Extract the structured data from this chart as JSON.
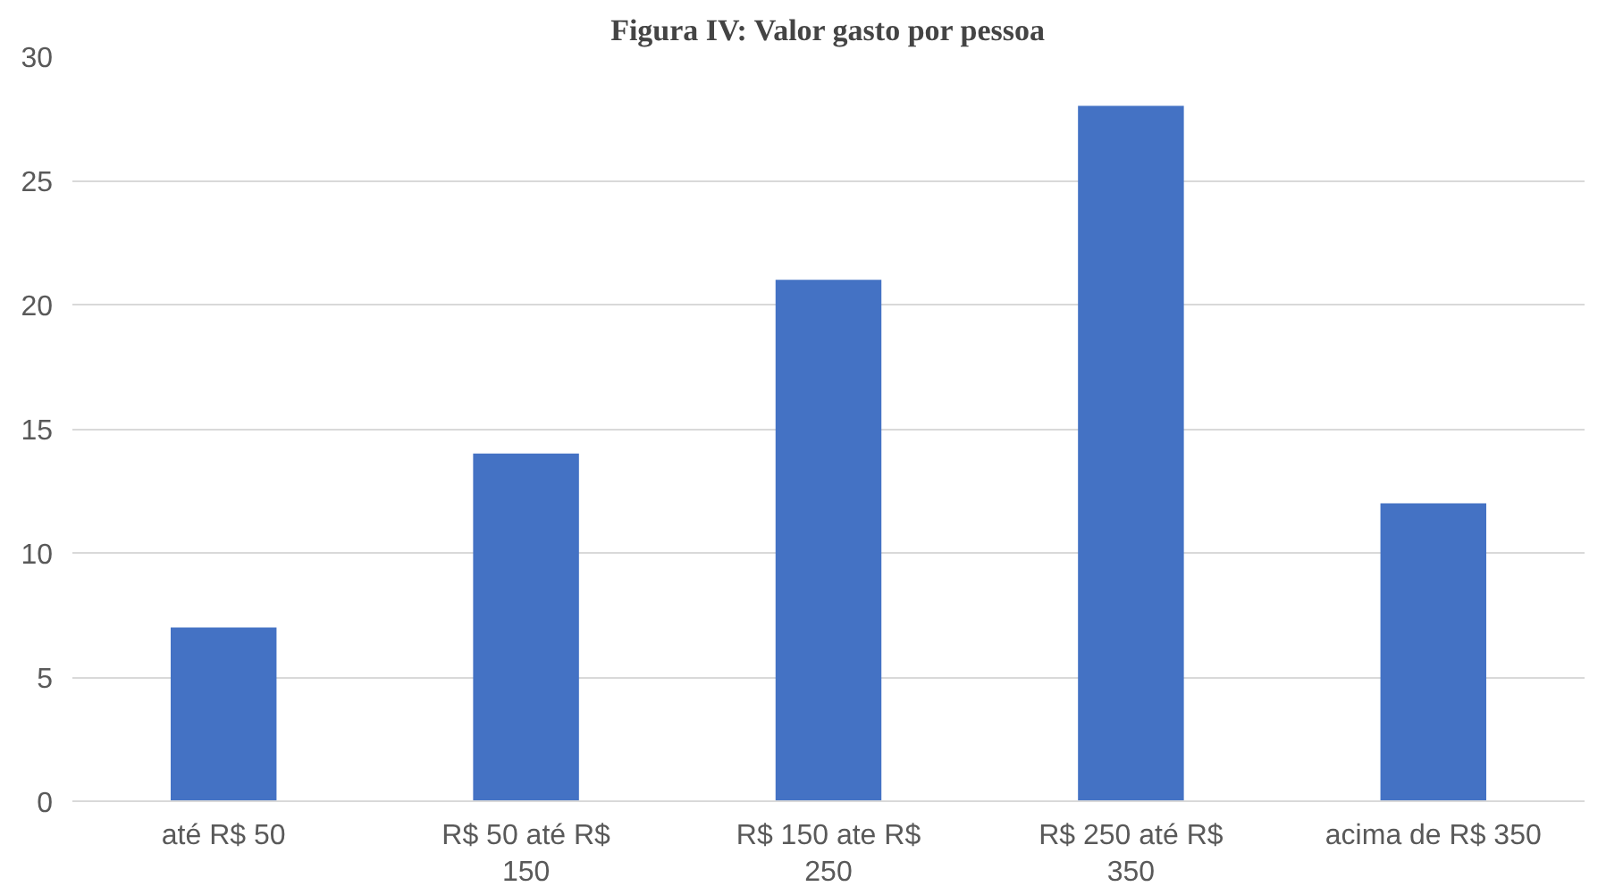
{
  "chart_data": {
    "type": "bar",
    "title": "Figura IV: Valor gasto por pessoa",
    "categories": [
      "até R$ 50",
      "R$ 50 até R$ 150",
      "R$ 150 ate R$ 250",
      "R$ 250 até R$ 350",
      "acima de R$ 350"
    ],
    "values": [
      7,
      14,
      21,
      28,
      12
    ],
    "color": "#4472c4",
    "ylim": [
      0,
      30
    ],
    "yticks": [
      0,
      5,
      10,
      15,
      20,
      25,
      30
    ],
    "grid": "y"
  }
}
